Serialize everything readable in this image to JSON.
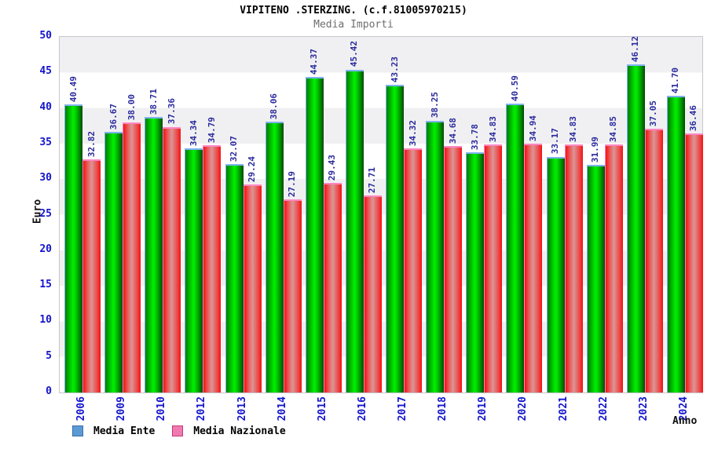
{
  "header": {
    "title": "VIPITENO .STERZING. (c.f.81005970215)",
    "subtitle": "Media Importi"
  },
  "chart_data": {
    "type": "bar",
    "title": "VIPITENO .STERZING. (c.f.81005970215)",
    "subtitle": "Media Importi",
    "xlabel": "Anno",
    "ylabel": "Euro",
    "ylim": [
      0,
      50
    ],
    "ytick_step": 5,
    "grid": "horizontal-bands",
    "legend_position": "bottom-left",
    "categories": [
      "2006",
      "2009",
      "2010",
      "2012",
      "2013",
      "2014",
      "2015",
      "2016",
      "2017",
      "2018",
      "2019",
      "2020",
      "2021",
      "2022",
      "2023",
      "2024"
    ],
    "series": [
      {
        "name": "Media Ente",
        "values": [
          40.49,
          36.67,
          38.71,
          34.34,
          32.07,
          38.06,
          44.37,
          45.42,
          43.23,
          38.25,
          33.78,
          40.59,
          33.17,
          31.99,
          46.12,
          41.7
        ]
      },
      {
        "name": "Media Nazionale",
        "values": [
          32.82,
          38.0,
          37.36,
          34.79,
          29.24,
          27.19,
          29.43,
          27.71,
          34.32,
          34.68,
          34.83,
          34.94,
          34.83,
          34.85,
          37.05,
          36.46
        ]
      }
    ]
  },
  "colors": {
    "title": "#000000",
    "subtitle": "#6e6e6e",
    "band": "#f0f0f2",
    "value_label": "#2a2a9e",
    "axis_label": "#1414cc",
    "bar_ente": "#00d800",
    "bar_naz": "#ee3333",
    "ente_border": "#7fb2f0",
    "naz_border": "#ff85c2",
    "legend_ente": "#5b9bd5",
    "legend_naz": "#f07bb0"
  }
}
